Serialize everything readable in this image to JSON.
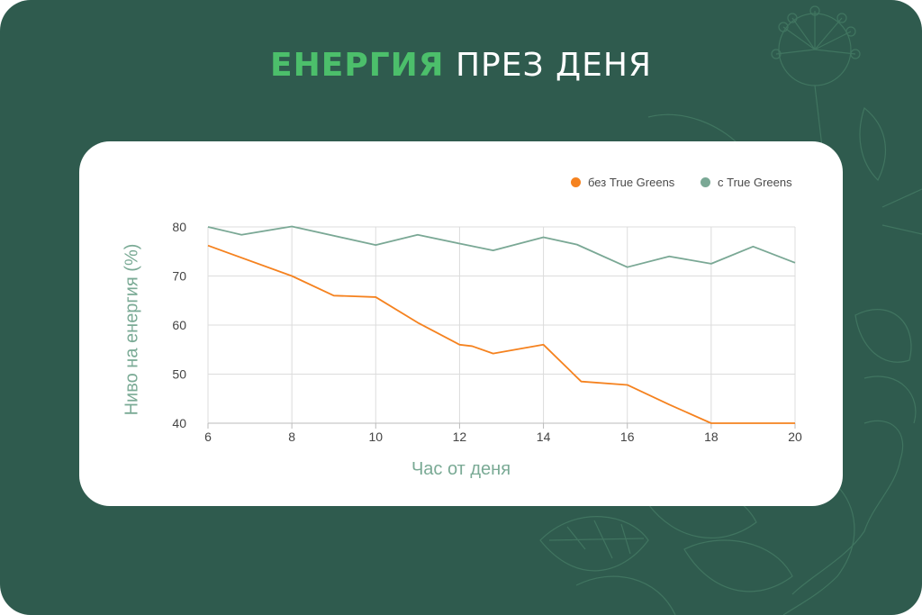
{
  "header": {
    "title_accent": "ЕНЕРГИЯ",
    "title_rest": "ПРЕЗ ДЕНЯ"
  },
  "colors": {
    "background": "#2f5b4e",
    "accent": "#4cbf6b",
    "series_without": "#f5821f",
    "series_with": "#7aa895",
    "axis_label": "#7aaa95"
  },
  "chart_data": {
    "type": "line",
    "xlabel": "Час от деня",
    "ylabel": "Ниво на енергия (%)",
    "xlim": [
      6,
      20
    ],
    "ylim": [
      40,
      80
    ],
    "xticks": [
      6,
      8,
      10,
      12,
      14,
      16,
      18,
      20
    ],
    "yticks": [
      40,
      50,
      60,
      70,
      80
    ],
    "grid": true,
    "legend_position": "top-right",
    "series": [
      {
        "name": "без True Greens",
        "color": "#f5821f",
        "x": [
          6,
          8,
          9,
          10,
          11,
          12,
          12.3,
          12.8,
          14,
          14.9,
          16,
          17,
          18,
          19,
          20
        ],
        "y": [
          76.2,
          70,
          66,
          65.7,
          60.5,
          56,
          55.7,
          54.2,
          56,
          48.5,
          47.8,
          43.8,
          40,
          40,
          40
        ]
      },
      {
        "name": "с True Greens",
        "color": "#7aa895",
        "x": [
          6,
          6.8,
          8,
          10,
          11,
          12,
          12.8,
          14,
          14.8,
          16,
          17,
          18,
          19,
          20
        ],
        "y": [
          80,
          78.4,
          80.1,
          76.3,
          78.4,
          76.6,
          75.2,
          77.9,
          76.4,
          71.8,
          74,
          72.5,
          76,
          72.7
        ]
      }
    ]
  }
}
